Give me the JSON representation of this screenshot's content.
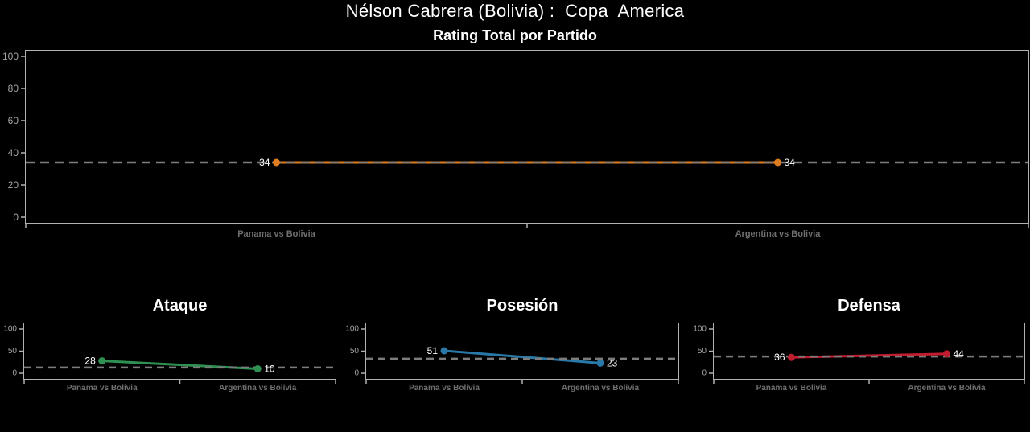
{
  "page": {
    "title": "Nélson Cabrera (Bolivia) :  Copa  America",
    "subtitle": "Rating Total por Partido"
  },
  "colors": {
    "background": "#000000",
    "text_white": "#ffffff",
    "spine_gray": "#b0b0b0",
    "ytick_gray": "#a6a6a6",
    "xlabel_gray": "#6f6f6f",
    "dash_gray": "#7d7d7d",
    "orange": "#dd7d1f",
    "green": "#2e9152",
    "blue": "#2878a8",
    "red": "#c01d2e"
  },
  "chart_data": [
    {
      "type": "line",
      "title": "Rating Total por Partido",
      "categories": [
        "Panama vs Bolivia",
        "Argentina vs Bolivia"
      ],
      "values": [
        34,
        34
      ],
      "value_labels": [
        "34",
        "34"
      ],
      "mean_line": 34,
      "color": "#dd7d1f",
      "ylim": [
        0,
        100
      ],
      "yticks": [
        0,
        20,
        40,
        60,
        80,
        100
      ],
      "grid": false,
      "legend": "none"
    },
    {
      "type": "line",
      "title": "Ataque",
      "categories": [
        "Panama vs Bolivia",
        "Argentina vs Bolivia"
      ],
      "values": [
        28,
        10
      ],
      "value_labels": [
        "28",
        "10"
      ],
      "mean_line": 13,
      "color": "#2e9152",
      "ylim": [
        0,
        100
      ],
      "yticks": [
        0,
        50,
        100
      ],
      "grid": false,
      "legend": "none"
    },
    {
      "type": "line",
      "title": "Posesión",
      "categories": [
        "Panama vs Bolivia",
        "Argentina vs Bolivia"
      ],
      "values": [
        51,
        23
      ],
      "value_labels": [
        "51",
        "23"
      ],
      "mean_line": 33,
      "color": "#2878a8",
      "ylim": [
        0,
        100
      ],
      "yticks": [
        0,
        50,
        100
      ],
      "grid": false,
      "legend": "none"
    },
    {
      "type": "line",
      "title": "Defensa",
      "categories": [
        "Panama vs Bolivia",
        "Argentina vs Bolivia"
      ],
      "values": [
        36,
        44
      ],
      "value_labels": [
        "36",
        "44"
      ],
      "mean_line": 38,
      "color": "#c01d2e",
      "ylim": [
        0,
        100
      ],
      "yticks": [
        0,
        50,
        100
      ],
      "grid": false,
      "legend": "none"
    }
  ]
}
